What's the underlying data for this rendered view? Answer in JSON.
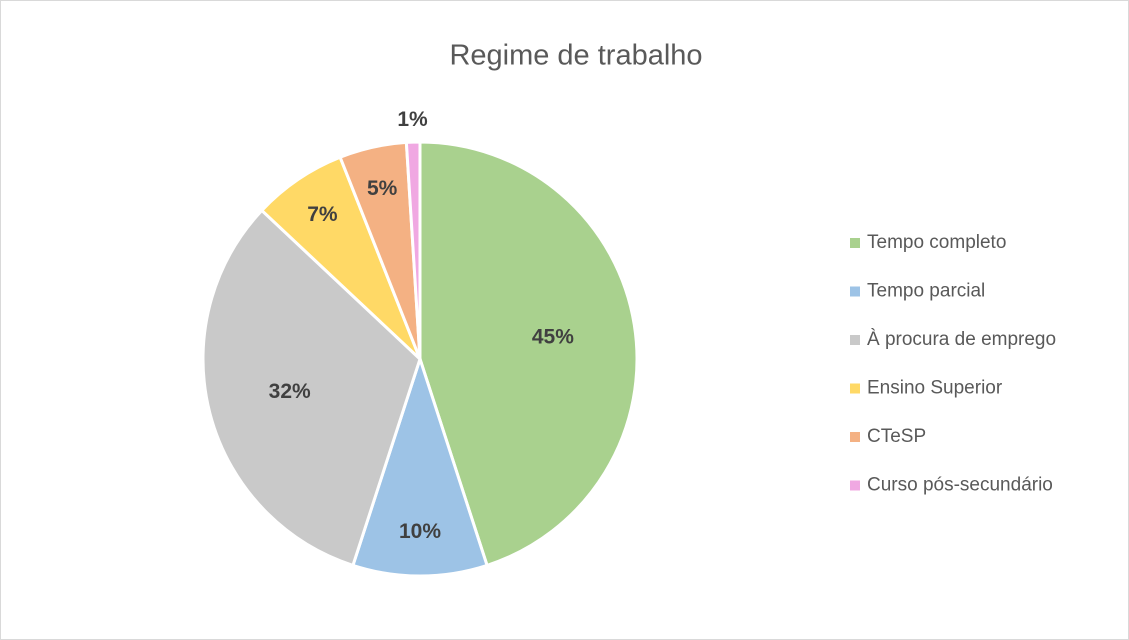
{
  "chart_data": {
    "type": "pie",
    "title": "Regime de trabalho",
    "categories": [
      "Tempo completo",
      "Tempo parcial",
      "À procura de emprego",
      "Ensino Superior",
      "CTeSP",
      "Curso pós-secundário"
    ],
    "values": [
      45,
      10,
      32,
      7,
      5,
      1
    ],
    "value_labels": [
      "45%",
      "10%",
      "32%",
      "7%",
      "5%",
      "1%"
    ],
    "colors": [
      "#a9d18e",
      "#9dc3e6",
      "#c9c9c9",
      "#ffd966",
      "#f4b183",
      "#f0a8e2"
    ],
    "legend": "right"
  }
}
